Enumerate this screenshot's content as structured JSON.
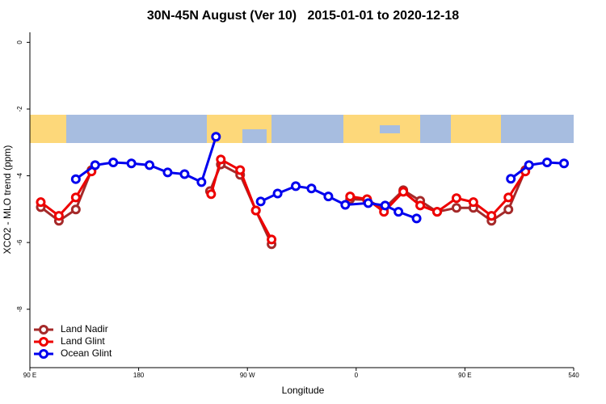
{
  "chart_data": {
    "type": "line",
    "title": "30N-45N August (Ver 10)   2015-01-01 to 2020-12-18",
    "x_label": "Longitude",
    "y_label": "XCO2 - MLO trend (ppm)",
    "xlim": [
      90,
      540
    ],
    "ylim": [
      -9.75,
      0.3
    ],
    "xticks": [
      {
        "value": 90,
        "label": "90 E"
      },
      180,
      {
        "value": 270,
        "label": "90 W"
      },
      {
        "value": 360,
        "label": "0"
      },
      {
        "value": 450,
        "label": "90 E"
      },
      540
    ],
    "yticks": [
      0,
      -2,
      -4,
      -6,
      -8
    ],
    "legend": "bottom-left",
    "series": [
      {
        "name": "Land Nadir",
        "color": "#a52a2a",
        "x": [
          99,
          114,
          128,
          141,
          null,
          239,
          248,
          264,
          277,
          290,
          null,
          355,
          369,
          383,
          399,
          413,
          427,
          443,
          457,
          472,
          486,
          500
        ],
        "values": [
          -4.94,
          -5.35,
          -5.01,
          -3.83,
          null,
          -4.46,
          -3.66,
          -3.97,
          -5.04,
          -6.05,
          null,
          -4.7,
          -4.72,
          -4.99,
          -4.43,
          -4.75,
          -5.08,
          -4.96,
          -4.96,
          -5.35,
          -5.01,
          -3.83
        ]
      },
      {
        "name": "Land Glint",
        "color": "#ee0000",
        "x": [
          99,
          114,
          128,
          141,
          null,
          240,
          248,
          264,
          277,
          290,
          null,
          355,
          369,
          383,
          399,
          413,
          427,
          443,
          457,
          472,
          486,
          500
        ],
        "values": [
          -4.79,
          -5.2,
          -4.65,
          -3.87,
          null,
          -4.55,
          -3.51,
          -3.83,
          -5.04,
          -5.91,
          null,
          -4.62,
          -4.7,
          -5.08,
          -4.48,
          -4.89,
          -5.08,
          -4.67,
          -4.79,
          -5.2,
          -4.65,
          -3.87
        ]
      },
      {
        "name": "Ocean Glint",
        "color": "#0000ee",
        "x": [
          128,
          144,
          159,
          174,
          189,
          204,
          218,
          232,
          244,
          null,
          281,
          295,
          310,
          323,
          337,
          351,
          370,
          384,
          395,
          410,
          null,
          488,
          503,
          518,
          532
        ],
        "values": [
          -4.1,
          -3.68,
          -3.6,
          -3.63,
          -3.68,
          -3.9,
          -3.95,
          -4.19,
          -2.83,
          null,
          -4.77,
          -4.53,
          -4.31,
          -4.38,
          -4.62,
          -4.87,
          -4.82,
          -4.89,
          -5.08,
          -5.28,
          null,
          -4.09,
          -3.68,
          -3.6,
          -3.63
        ]
      }
    ]
  }
}
